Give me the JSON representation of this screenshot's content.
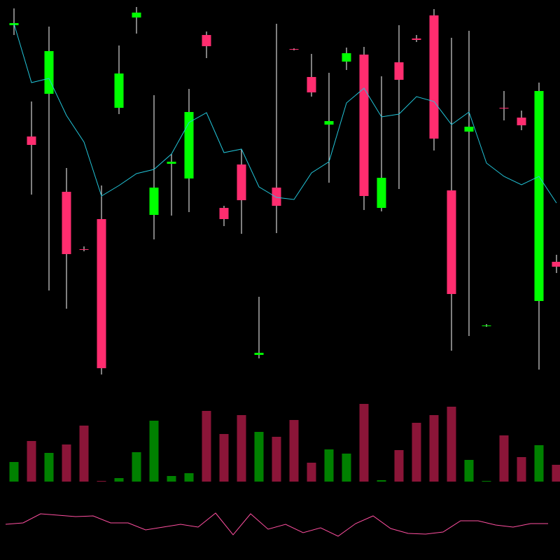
{
  "chart_data": [
    {
      "type": "candlestick",
      "open": [
        524,
        365,
        426,
        286,
        204,
        247,
        406,
        535,
        253,
        326,
        305,
        510,
        263,
        325,
        53,
        292,
        490,
        450,
        382,
        472,
        482,
        263,
        471,
        505,
        538,
        288,
        372,
        94,
        406,
        392,
        130,
        186
      ],
      "high": [
        548,
        415,
        522,
        320,
        208,
        295,
        495,
        550,
        424,
        340,
        433,
        515,
        266,
        347,
        136,
        526,
        491,
        483,
        456,
        492,
        493,
        451,
        524,
        510,
        547,
        506,
        516,
        97,
        430,
        402,
        442,
        196
      ],
      "low": [
        510,
        282,
        145,
        119,
        201,
        25,
        397,
        512,
        218,
        252,
        257,
        477,
        237,
        226,
        48,
        227,
        488,
        422,
        299,
        460,
        260,
        258,
        290,
        500,
        345,
        59,
        80,
        93,
        388,
        374,
        32,
        170
      ],
      "close": [
        527,
        353,
        487,
        197,
        203,
        34,
        455,
        542,
        292,
        329,
        400,
        494,
        247,
        274,
        56,
        266,
        489,
        428,
        387,
        484,
        280,
        306,
        446,
        503,
        362,
        140,
        379,
        95,
        405,
        381,
        430,
        179
      ],
      "up_color": "#00ff00",
      "down_color": "#ff2d6f",
      "wick_color": "#ffffff",
      "ylim": [
        0,
        560
      ],
      "moving_average": {
        "color": "#22c5d9",
        "values": [
          526,
          442,
          448,
          395,
          357,
          280,
          295,
          312,
          318,
          340,
          385,
          399,
          342,
          347,
          293,
          278,
          275,
          313,
          329,
          413,
          434,
          393,
          397,
          422,
          415,
          382,
          400,
          327,
          308,
          296,
          308,
          270
        ]
      }
    },
    {
      "type": "bar",
      "values": [
        28,
        58,
        41,
        53,
        80,
        1,
        5,
        42,
        87,
        8,
        12,
        101,
        68,
        95,
        71,
        64,
        88,
        27,
        46,
        40,
        111,
        2,
        45,
        84,
        95,
        107,
        31,
        1,
        66,
        35,
        52,
        24
      ],
      "up_color": "#008000",
      "down_color": "#8b1538",
      "ylim": [
        0,
        128
      ]
    },
    {
      "type": "line",
      "values": [
        51,
        53,
        66,
        64,
        62,
        63,
        53,
        53,
        43,
        47,
        51,
        47,
        67,
        36,
        66,
        44,
        51,
        39,
        46,
        34,
        52,
        63,
        45,
        38,
        37,
        40,
        56,
        56,
        50,
        47,
        52,
        52
      ],
      "color": "#ff4fa0",
      "ylim": [
        0,
        110
      ]
    }
  ]
}
